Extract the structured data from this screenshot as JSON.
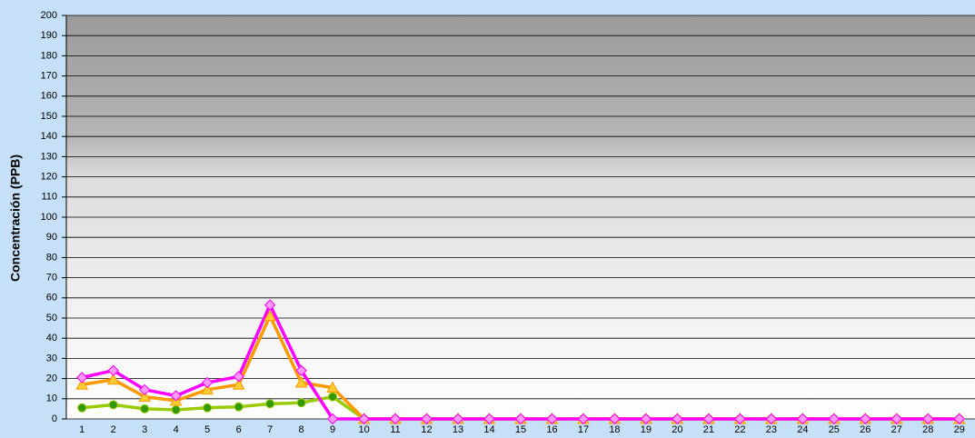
{
  "chart_data": {
    "type": "line",
    "y_label": "Concentración  (PPB)",
    "categories": [
      "1",
      "2",
      "3",
      "4",
      "5",
      "6",
      "7",
      "8",
      "9",
      "10",
      "11",
      "12",
      "13",
      "14",
      "15",
      "16",
      "17",
      "18",
      "19",
      "20",
      "21",
      "22",
      "23",
      "24",
      "25",
      "26",
      "27",
      "28",
      "29"
    ],
    "series": [
      {
        "color": "#99cc00",
        "marker": "circle",
        "marker_color": "#339900",
        "values": [
          5.5,
          7,
          5,
          4.5,
          5.5,
          6,
          7.5,
          8,
          11,
          0,
          0,
          0,
          0,
          0,
          0,
          0,
          0,
          0,
          0,
          0,
          0,
          0,
          0,
          0,
          0,
          0,
          0,
          0,
          0
        ]
      },
      {
        "color": "#ff9900",
        "marker": "triangle",
        "marker_color": "#ffcc33",
        "values": [
          17,
          19.5,
          11,
          9,
          14.5,
          17,
          51,
          18,
          15.5,
          0,
          0,
          0,
          0,
          0,
          0,
          0,
          0,
          0,
          0,
          0,
          0,
          0,
          0,
          0,
          0,
          0,
          0,
          0,
          0
        ]
      },
      {
        "color": "#ff00ff",
        "marker": "diamond",
        "marker_color": "#ff99ff",
        "values": [
          20.5,
          24,
          14.5,
          11.5,
          18,
          21,
          56.5,
          24,
          0,
          0,
          0,
          0,
          0,
          0,
          0,
          0,
          0,
          0,
          0,
          0,
          0,
          0,
          0,
          0,
          0,
          0,
          0,
          0,
          0
        ]
      }
    ],
    "ylim": [
      0,
      200
    ],
    "yticks": [
      0,
      10,
      20,
      30,
      40,
      50,
      60,
      70,
      80,
      90,
      100,
      110,
      120,
      130,
      140,
      150,
      160,
      170,
      180,
      190,
      200
    ],
    "grid": true
  }
}
